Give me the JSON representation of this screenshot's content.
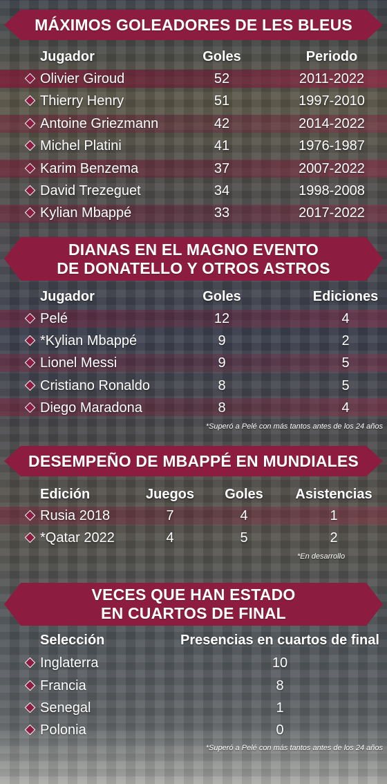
{
  "sections": [
    {
      "title_lines": [
        "MÁXIMOS GOLEADORES DE LES BLEUS"
      ],
      "headers": [
        "Jugador",
        "Goles",
        "Periodo"
      ],
      "rows": [
        [
          "Olivier Giroud",
          "52",
          "2011-2022"
        ],
        [
          "Thierry Henry",
          "51",
          "1997-2010"
        ],
        [
          "Antoine Griezmann",
          "42",
          "2014-2022"
        ],
        [
          "Michel Platini",
          "41",
          "1976-1987"
        ],
        [
          "Karim Benzema",
          "37",
          "2007-2022"
        ],
        [
          "David Trezeguet",
          "34",
          "1998-2008"
        ],
        [
          "Kylian Mbappé",
          "33",
          "2017-2022"
        ]
      ]
    },
    {
      "title_lines": [
        "DIANAS EN EL MAGNO EVENTO",
        "DE DONATELLO Y OTROS ASTROS"
      ],
      "headers": [
        "Jugador",
        "Goles",
        "Ediciones"
      ],
      "rows": [
        [
          "Pelé",
          "12",
          "4"
        ],
        [
          "*Kylian Mbappé",
          "9",
          "2"
        ],
        [
          "Lionel Messi",
          "9",
          "5"
        ],
        [
          "Cristiano Ronaldo",
          "8",
          "5"
        ],
        [
          "Diego Maradona",
          "8",
          "4"
        ]
      ],
      "note": "*Superó a Pelé con más tantos antes de los 24 años"
    },
    {
      "title_lines": [
        "DESEMPEÑO DE MBAPPÉ EN MUNDIALES"
      ],
      "headers": [
        "Edición",
        "Juegos",
        "Goles",
        "Asistencias"
      ],
      "rows": [
        [
          "Rusia 2018",
          "7",
          "4",
          "1"
        ],
        [
          "*Qatar 2022",
          "4",
          "5",
          "2"
        ]
      ],
      "note": "*En desarrollo"
    },
    {
      "title_lines": [
        "VECES QUE HAN ESTADO",
        "EN CUARTOS DE FINAL"
      ],
      "headers": [
        "Selección",
        "Presencias en cuartos de final"
      ],
      "rows": [
        [
          "Inglaterra",
          "10"
        ],
        [
          "Francia",
          "8"
        ],
        [
          "Senegal",
          "1"
        ],
        [
          "Polonia",
          "0"
        ]
      ],
      "note": "*Superó a Pelé con más tantos antes de los 24 años"
    }
  ],
  "colors": {
    "accent": "#8c1d40",
    "text": "#ffffff"
  }
}
